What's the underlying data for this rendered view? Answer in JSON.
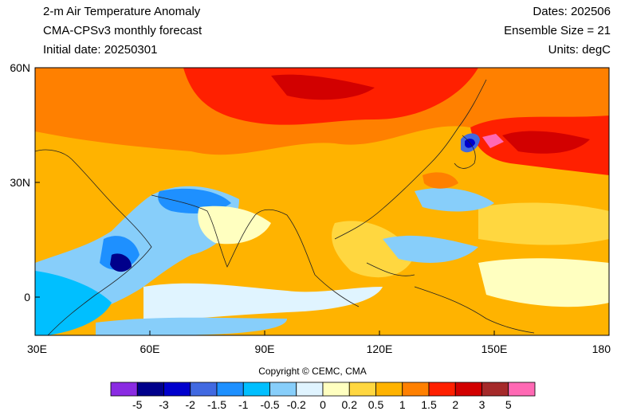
{
  "header": {
    "title": "2-m Air Temperature Anomaly",
    "model": "CMA-CPSv3 monthly forecast",
    "initial_date": "Initial date: 20250301",
    "dates": "Dates: 202506",
    "ensemble": "Ensemble Size = 21",
    "units": "Units: degC"
  },
  "map": {
    "lon_range": [
      30,
      180
    ],
    "lat_range": [
      -10,
      60
    ],
    "lon_ticks": [
      {
        "value": 30,
        "label": "30E"
      },
      {
        "value": 60,
        "label": "60E"
      },
      {
        "value": 90,
        "label": "90E"
      },
      {
        "value": 120,
        "label": "120E"
      },
      {
        "value": 150,
        "label": "150E"
      },
      {
        "value": 180,
        "label": "180"
      }
    ],
    "lat_ticks": [
      {
        "value": 60,
        "label": "60N"
      },
      {
        "value": 30,
        "label": "30N"
      },
      {
        "value": 0,
        "label": "0"
      }
    ]
  },
  "copyright": "Copyright © CEMC, CMA",
  "colorbar": {
    "colors": [
      "#8a2be2",
      "#00008b",
      "#0000cd",
      "#4169e1",
      "#1e90ff",
      "#00bfff",
      "#87cefa",
      "#e0f4ff",
      "#ffffc0",
      "#ffd740",
      "#ffb300",
      "#ff8000",
      "#ff2000",
      "#d20000",
      "#a52a2a",
      "#ff69b4"
    ],
    "labels": [
      "-5",
      "-3",
      "-2",
      "-1.5",
      "-1",
      "-0.5",
      "-0.2",
      "0",
      "0.2",
      "0.5",
      "1",
      "1.5",
      "2",
      "3",
      "5"
    ]
  }
}
